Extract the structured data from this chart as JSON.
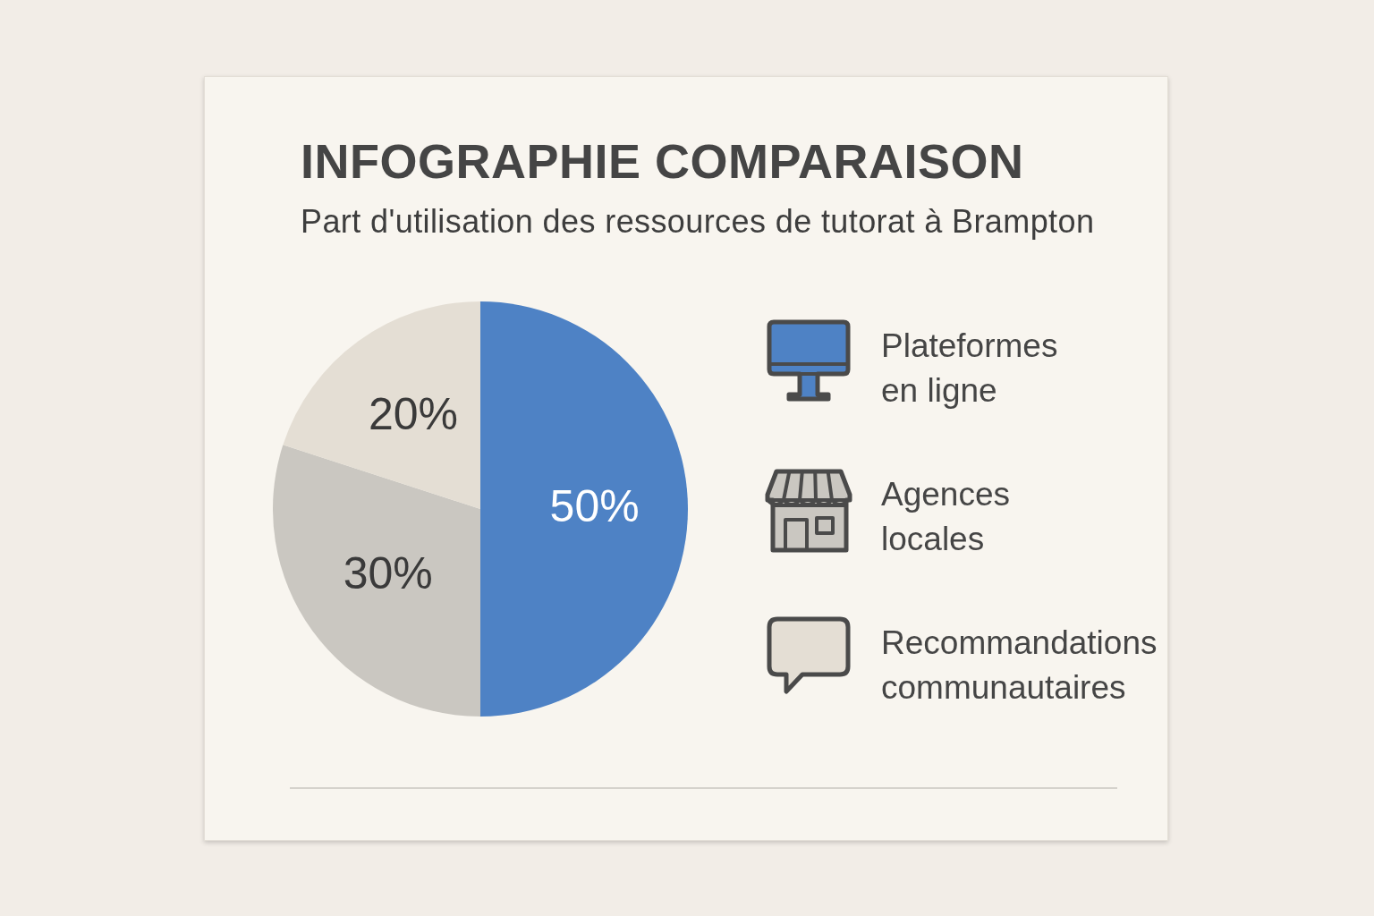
{
  "chart_data": {
    "type": "pie",
    "title": "INFOGRAPHIE COMPARAISON",
    "subtitle": "Part d'utilisation des ressources de tutorat à Brampton",
    "categories": [
      "Plateformes en ligne",
      "Agences locales",
      "Recommandations communautaires"
    ],
    "values": [
      50,
      30,
      20
    ],
    "colors": [
      "#4e82c5",
      "#cac7c1",
      "#e4ded4"
    ],
    "value_labels": [
      "50%",
      "30%",
      "20%"
    ],
    "legend": "right"
  }
}
